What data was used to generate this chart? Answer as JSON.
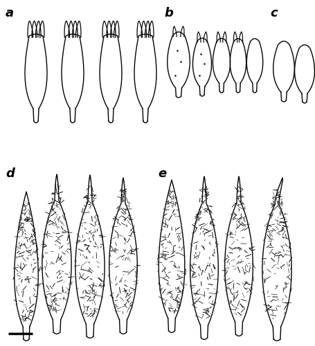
{
  "labels": [
    "a",
    "b",
    "c",
    "d",
    "e"
  ],
  "background_color": "#ffffff",
  "line_color": "#000000",
  "line_width": 1.0,
  "label_fontsize": 13,
  "figsize": [
    4.56,
    5.0
  ],
  "dpi": 100
}
